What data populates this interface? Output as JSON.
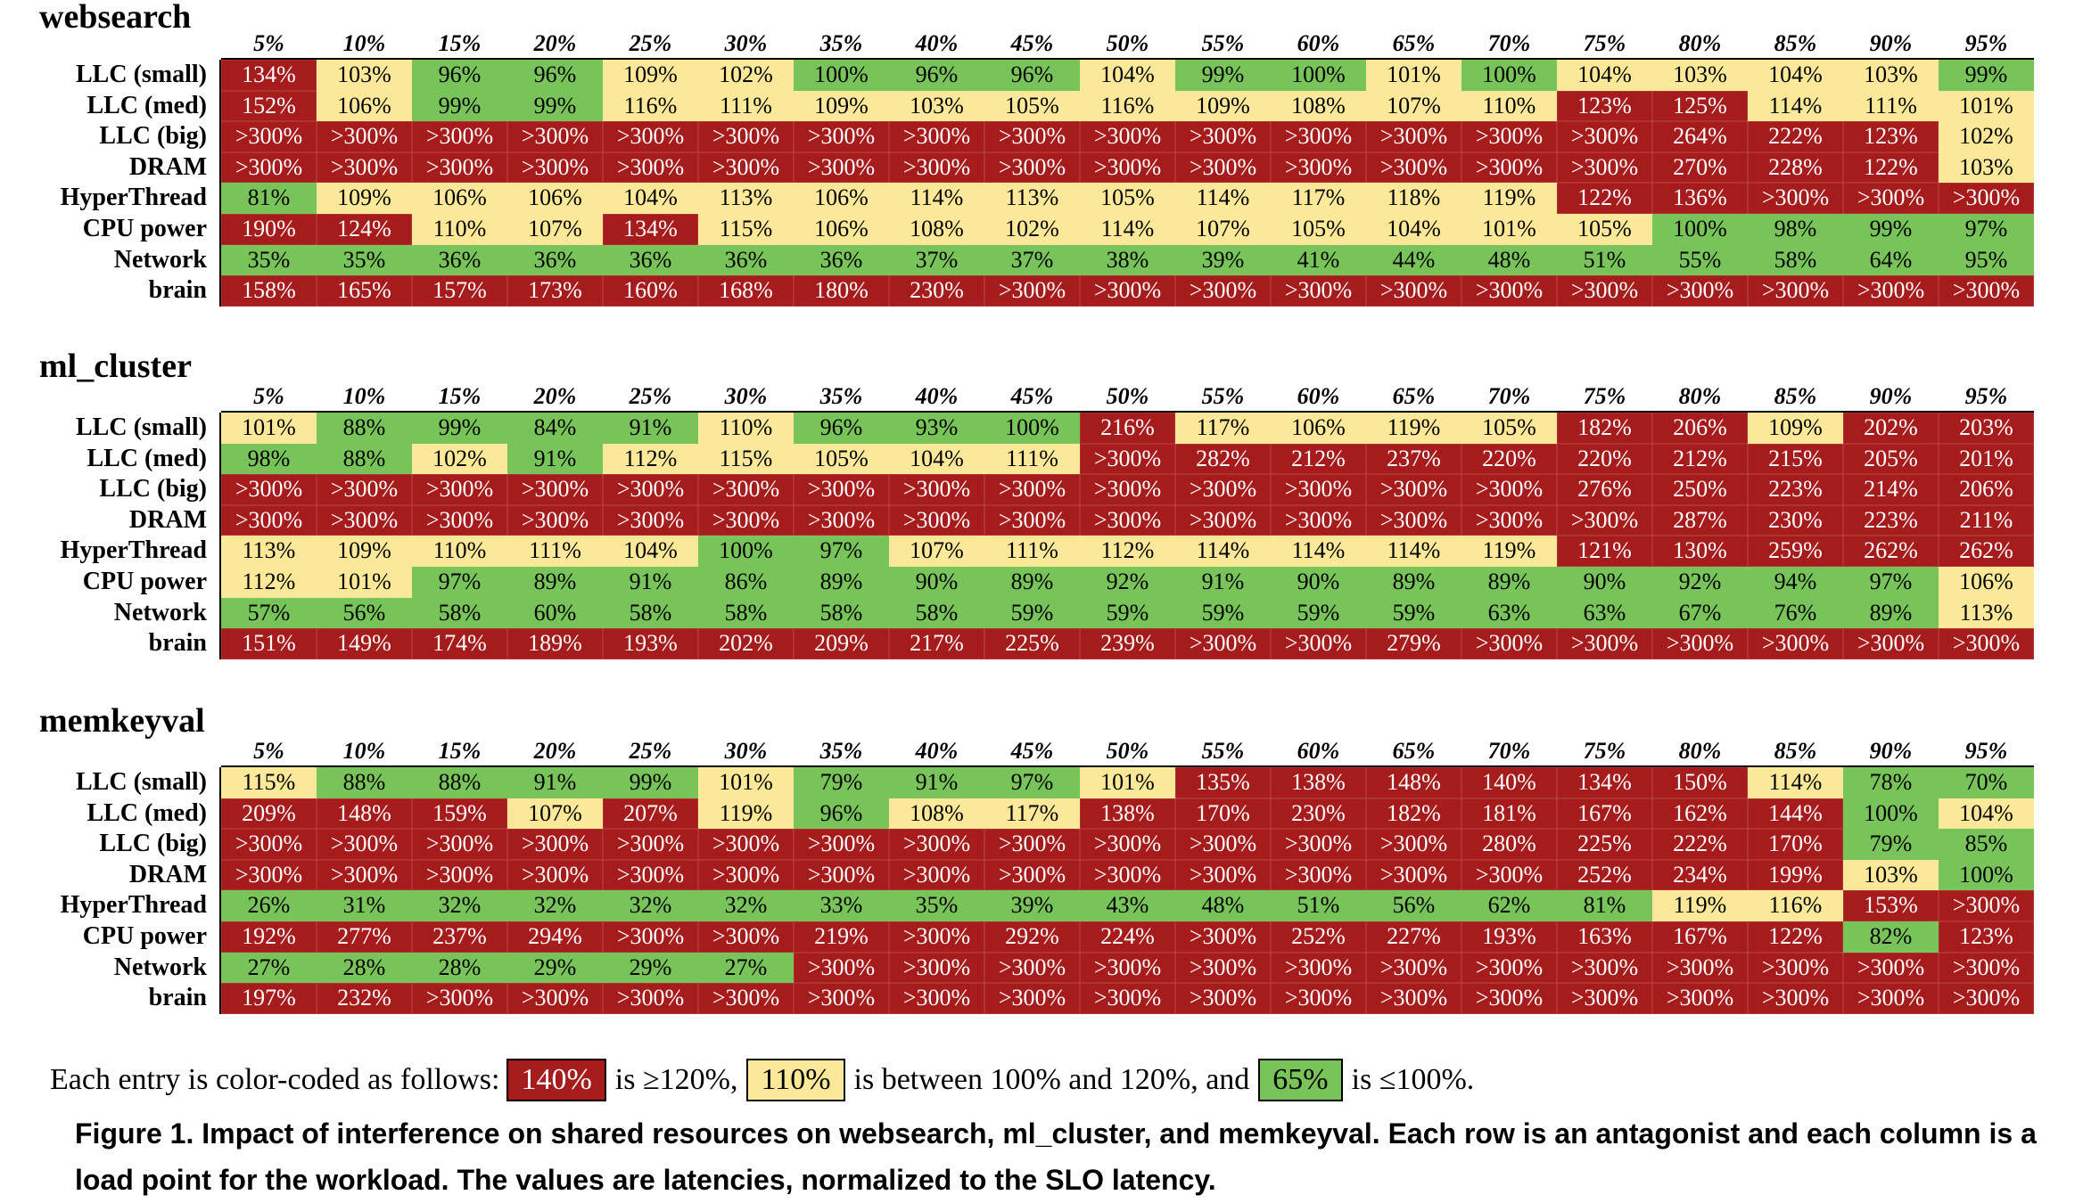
{
  "columns": [
    "5%",
    "10%",
    "15%",
    "20%",
    "25%",
    "30%",
    "35%",
    "40%",
    "45%",
    "50%",
    "55%",
    "60%",
    "65%",
    "70%",
    "75%",
    "80%",
    "85%",
    "90%",
    "95%"
  ],
  "row_labels": [
    "LLC (small)",
    "LLC (med)",
    "LLC (big)",
    "DRAM",
    "HyperThread",
    "CPU power",
    "Network",
    "brain"
  ],
  "colors": {
    "red": "#a61c1c",
    "yellow": "#fbe898",
    "green": "#79c45a"
  },
  "tables": [
    {
      "title": "websearch",
      "rows": [
        [
          "134%",
          "103%",
          "96%",
          "96%",
          "109%",
          "102%",
          "100%",
          "96%",
          "96%",
          "104%",
          "99%",
          "100%",
          "101%",
          "100%",
          "104%",
          "103%",
          "104%",
          "103%",
          "99%"
        ],
        [
          "152%",
          "106%",
          "99%",
          "99%",
          "116%",
          "111%",
          "109%",
          "103%",
          "105%",
          "116%",
          "109%",
          "108%",
          "107%",
          "110%",
          "123%",
          "125%",
          "114%",
          "111%",
          "101%"
        ],
        [
          ">300%",
          ">300%",
          ">300%",
          ">300%",
          ">300%",
          ">300%",
          ">300%",
          ">300%",
          ">300%",
          ">300%",
          ">300%",
          ">300%",
          ">300%",
          ">300%",
          ">300%",
          "264%",
          "222%",
          "123%",
          "102%"
        ],
        [
          ">300%",
          ">300%",
          ">300%",
          ">300%",
          ">300%",
          ">300%",
          ">300%",
          ">300%",
          ">300%",
          ">300%",
          ">300%",
          ">300%",
          ">300%",
          ">300%",
          ">300%",
          "270%",
          "228%",
          "122%",
          "103%"
        ],
        [
          "81%",
          "109%",
          "106%",
          "106%",
          "104%",
          "113%",
          "106%",
          "114%",
          "113%",
          "105%",
          "114%",
          "117%",
          "118%",
          "119%",
          "122%",
          "136%",
          ">300%",
          ">300%",
          ">300%"
        ],
        [
          "190%",
          "124%",
          "110%",
          "107%",
          "134%",
          "115%",
          "106%",
          "108%",
          "102%",
          "114%",
          "107%",
          "105%",
          "104%",
          "101%",
          "105%",
          "100%",
          "98%",
          "99%",
          "97%"
        ],
        [
          "35%",
          "35%",
          "36%",
          "36%",
          "36%",
          "36%",
          "36%",
          "37%",
          "37%",
          "38%",
          "39%",
          "41%",
          "44%",
          "48%",
          "51%",
          "55%",
          "58%",
          "64%",
          "95%"
        ],
        [
          "158%",
          "165%",
          "157%",
          "173%",
          "160%",
          "168%",
          "180%",
          "230%",
          ">300%",
          ">300%",
          ">300%",
          ">300%",
          ">300%",
          ">300%",
          ">300%",
          ">300%",
          ">300%",
          ">300%",
          ">300%"
        ]
      ]
    },
    {
      "title": "ml_cluster",
      "rows": [
        [
          "101%",
          "88%",
          "99%",
          "84%",
          "91%",
          "110%",
          "96%",
          "93%",
          "100%",
          "216%",
          "117%",
          "106%",
          "119%",
          "105%",
          "182%",
          "206%",
          "109%",
          "202%",
          "203%"
        ],
        [
          "98%",
          "88%",
          "102%",
          "91%",
          "112%",
          "115%",
          "105%",
          "104%",
          "111%",
          ">300%",
          "282%",
          "212%",
          "237%",
          "220%",
          "220%",
          "212%",
          "215%",
          "205%",
          "201%"
        ],
        [
          ">300%",
          ">300%",
          ">300%",
          ">300%",
          ">300%",
          ">300%",
          ">300%",
          ">300%",
          ">300%",
          ">300%",
          ">300%",
          ">300%",
          ">300%",
          ">300%",
          "276%",
          "250%",
          "223%",
          "214%",
          "206%"
        ],
        [
          ">300%",
          ">300%",
          ">300%",
          ">300%",
          ">300%",
          ">300%",
          ">300%",
          ">300%",
          ">300%",
          ">300%",
          ">300%",
          ">300%",
          ">300%",
          ">300%",
          ">300%",
          "287%",
          "230%",
          "223%",
          "211%"
        ],
        [
          "113%",
          "109%",
          "110%",
          "111%",
          "104%",
          "100%",
          "97%",
          "107%",
          "111%",
          "112%",
          "114%",
          "114%",
          "114%",
          "119%",
          "121%",
          "130%",
          "259%",
          "262%",
          "262%"
        ],
        [
          "112%",
          "101%",
          "97%",
          "89%",
          "91%",
          "86%",
          "89%",
          "90%",
          "89%",
          "92%",
          "91%",
          "90%",
          "89%",
          "89%",
          "90%",
          "92%",
          "94%",
          "97%",
          "106%"
        ],
        [
          "57%",
          "56%",
          "58%",
          "60%",
          "58%",
          "58%",
          "58%",
          "58%",
          "59%",
          "59%",
          "59%",
          "59%",
          "59%",
          "63%",
          "63%",
          "67%",
          "76%",
          "89%",
          "113%"
        ],
        [
          "151%",
          "149%",
          "174%",
          "189%",
          "193%",
          "202%",
          "209%",
          "217%",
          "225%",
          "239%",
          ">300%",
          ">300%",
          "279%",
          ">300%",
          ">300%",
          ">300%",
          ">300%",
          ">300%",
          ">300%"
        ]
      ]
    },
    {
      "title": "memkeyval",
      "rows": [
        [
          "115%",
          "88%",
          "88%",
          "91%",
          "99%",
          "101%",
          "79%",
          "91%",
          "97%",
          "101%",
          "135%",
          "138%",
          "148%",
          "140%",
          "134%",
          "150%",
          "114%",
          "78%",
          "70%"
        ],
        [
          "209%",
          "148%",
          "159%",
          "107%",
          "207%",
          "119%",
          "96%",
          "108%",
          "117%",
          "138%",
          "170%",
          "230%",
          "182%",
          "181%",
          "167%",
          "162%",
          "144%",
          "100%",
          "104%"
        ],
        [
          ">300%",
          ">300%",
          ">300%",
          ">300%",
          ">300%",
          ">300%",
          ">300%",
          ">300%",
          ">300%",
          ">300%",
          ">300%",
          ">300%",
          ">300%",
          "280%",
          "225%",
          "222%",
          "170%",
          "79%",
          "85%"
        ],
        [
          ">300%",
          ">300%",
          ">300%",
          ">300%",
          ">300%",
          ">300%",
          ">300%",
          ">300%",
          ">300%",
          ">300%",
          ">300%",
          ">300%",
          ">300%",
          ">300%",
          "252%",
          "234%",
          "199%",
          "103%",
          "100%"
        ],
        [
          "26%",
          "31%",
          "32%",
          "32%",
          "32%",
          "32%",
          "33%",
          "35%",
          "39%",
          "43%",
          "48%",
          "51%",
          "56%",
          "62%",
          "81%",
          "119%",
          "116%",
          "153%",
          ">300%"
        ],
        [
          "192%",
          "277%",
          "237%",
          "294%",
          ">300%",
          ">300%",
          "219%",
          ">300%",
          "292%",
          "224%",
          ">300%",
          "252%",
          "227%",
          "193%",
          "163%",
          "167%",
          "122%",
          "82%",
          "123%"
        ],
        [
          "27%",
          "28%",
          "28%",
          "29%",
          "29%",
          "27%",
          ">300%",
          ">300%",
          ">300%",
          ">300%",
          ">300%",
          ">300%",
          ">300%",
          ">300%",
          ">300%",
          ">300%",
          ">300%",
          ">300%",
          ">300%"
        ],
        [
          "197%",
          "232%",
          ">300%",
          ">300%",
          ">300%",
          ">300%",
          ">300%",
          ">300%",
          ">300%",
          ">300%",
          ">300%",
          ">300%",
          ">300%",
          ">300%",
          ">300%",
          ">300%",
          ">300%",
          ">300%",
          ">300%"
        ]
      ]
    }
  ],
  "legend": {
    "prefix": "Each entry is color-coded as follows:",
    "red_sample": "140%",
    "red_text": "is ≥120%,",
    "yellow_sample": "110%",
    "yellow_text": "is between 100% and 120%, and",
    "green_sample": "65%",
    "green_text": "is ≤100%."
  },
  "caption": "Figure 1. Impact of interference on shared resources on websearch, ml_cluster, and memkeyval. Each row is an antagonist and each column is a load point for the workload. The values are latencies, normalized to the SLO latency."
}
